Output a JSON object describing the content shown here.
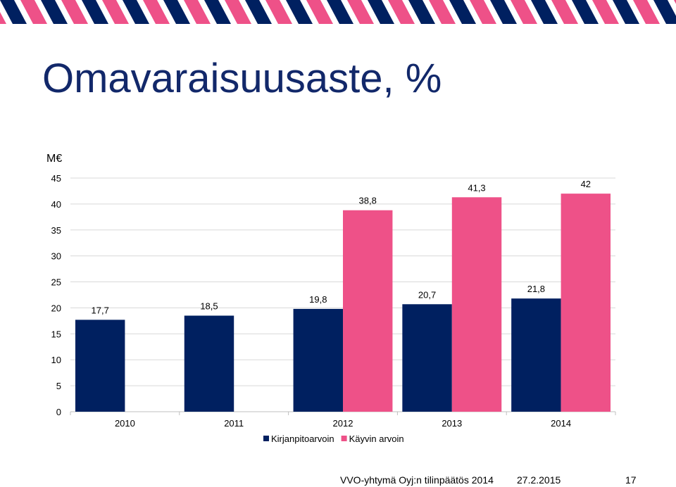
{
  "slide": {
    "title": "Omavaraisuusaste, %",
    "colors": {
      "navy": "#002060",
      "pink": "#ee5188",
      "banner_bg": "#ffffff"
    }
  },
  "chart_data": {
    "type": "bar",
    "ylabel": "M€",
    "categories": [
      "2010",
      "2011",
      "2012",
      "2013",
      "2014"
    ],
    "ylim": [
      0,
      45
    ],
    "yticks": [
      0,
      5,
      10,
      15,
      20,
      25,
      30,
      35,
      40,
      45
    ],
    "grid": true,
    "legend_position": "bottom",
    "series": [
      {
        "name": "Kirjanpitoarvoin",
        "color": "#002060",
        "values": [
          17.7,
          18.5,
          19.8,
          20.7,
          21.8
        ],
        "labels": [
          "17,7",
          "18,5",
          "19,8",
          "20,7",
          "21,8"
        ]
      },
      {
        "name": "Käyvin arvoin",
        "color": "#ee5188",
        "values": [
          null,
          null,
          38.8,
          41.3,
          42
        ],
        "labels": [
          "",
          "",
          "38,8",
          "41,3",
          "42"
        ]
      }
    ]
  },
  "footer": {
    "company": "VVO-yhtymä Oyj:n tilinpäätös 2014",
    "date": "27.2.2015",
    "page": "17"
  }
}
